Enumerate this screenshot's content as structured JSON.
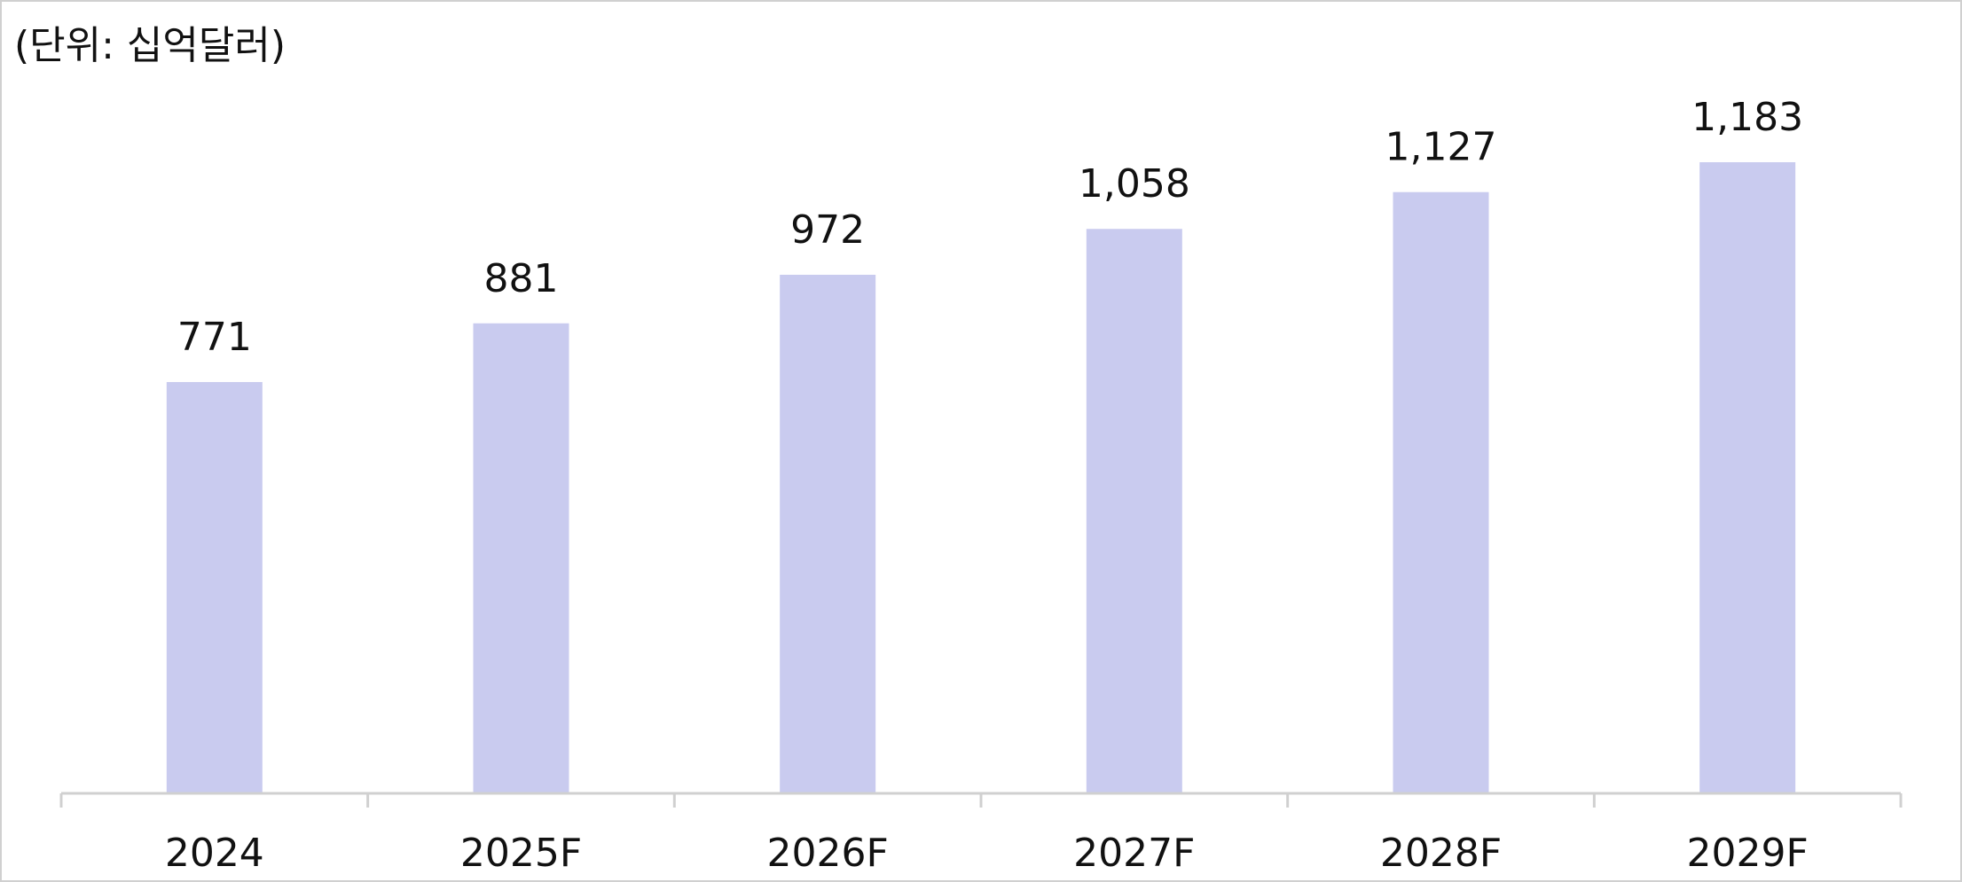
{
  "chart_data": {
    "type": "bar",
    "subtitle": "(단위: 십억달러)",
    "categories": [
      "2024",
      "2025F",
      "2026F",
      "2027F",
      "2028F",
      "2029F"
    ],
    "values": [
      771,
      881,
      972,
      1058,
      1127,
      1183
    ],
    "value_labels": [
      "771",
      "881",
      "972",
      "1,058",
      "1,127",
      "1,183"
    ],
    "color": "#c9cbef"
  }
}
